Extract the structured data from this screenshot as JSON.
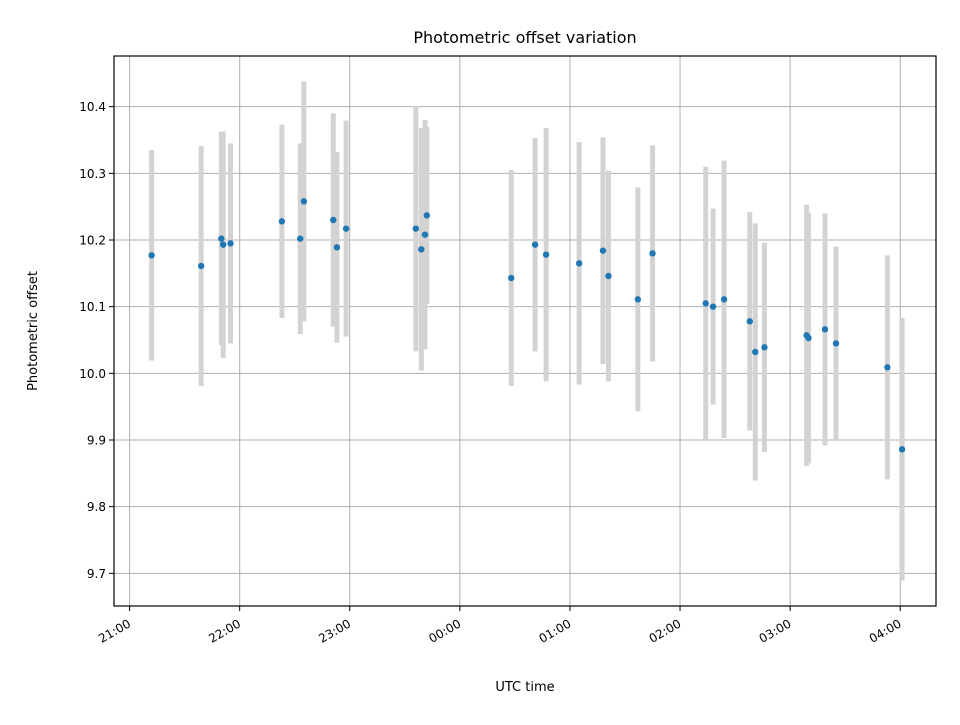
{
  "chart_data": {
    "type": "scatter",
    "title": "Photometric offset variation",
    "xlabel": "UTC time",
    "ylabel": "Photometric offset",
    "x_ticks": [
      {
        "label": "21:00",
        "value": 0
      },
      {
        "label": "22:00",
        "value": 60
      },
      {
        "label": "23:00",
        "value": 120
      },
      {
        "label": "00:00",
        "value": 180
      },
      {
        "label": "01:00",
        "value": 240
      },
      {
        "label": "02:00",
        "value": 300
      },
      {
        "label": "03:00",
        "value": 360
      },
      {
        "label": "04:00",
        "value": 420
      }
    ],
    "y_ticks": [
      {
        "label": "9.7",
        "value": 9.7
      },
      {
        "label": "9.8",
        "value": 9.8
      },
      {
        "label": "9.9",
        "value": 9.9
      },
      {
        "label": "10.0",
        "value": 10.0
      },
      {
        "label": "10.1",
        "value": 10.1
      },
      {
        "label": "10.2",
        "value": 10.2
      },
      {
        "label": "10.3",
        "value": 10.3
      },
      {
        "label": "10.4",
        "value": 10.4
      }
    ],
    "xlim": [
      -8.5,
      439.5
    ],
    "ylim": [
      9.651,
      10.476
    ],
    "grid": true,
    "point_color": "#1f77b4",
    "errorbar_color": "#d3d3d3",
    "points": [
      {
        "x": 12,
        "y": 10.177,
        "err": 0.158
      },
      {
        "x": 39,
        "y": 10.161,
        "err": 0.18
      },
      {
        "x": 50,
        "y": 10.202,
        "err": 0.16
      },
      {
        "x": 51,
        "y": 10.193,
        "err": 0.17
      },
      {
        "x": 55,
        "y": 10.195,
        "err": 0.15
      },
      {
        "x": 83,
        "y": 10.228,
        "err": 0.145
      },
      {
        "x": 93,
        "y": 10.202,
        "err": 0.143
      },
      {
        "x": 95,
        "y": 10.258,
        "err": 0.18
      },
      {
        "x": 111,
        "y": 10.23,
        "err": 0.16
      },
      {
        "x": 113,
        "y": 10.189,
        "err": 0.143
      },
      {
        "x": 118,
        "y": 10.217,
        "err": 0.162
      },
      {
        "x": 156,
        "y": 10.217,
        "err": 0.184
      },
      {
        "x": 159,
        "y": 10.186,
        "err": 0.182
      },
      {
        "x": 161,
        "y": 10.208,
        "err": 0.172
      },
      {
        "x": 162,
        "y": 10.237,
        "err": 0.133
      },
      {
        "x": 208,
        "y": 10.143,
        "err": 0.162
      },
      {
        "x": 221,
        "y": 10.193,
        "err": 0.16
      },
      {
        "x": 227,
        "y": 10.178,
        "err": 0.19
      },
      {
        "x": 245,
        "y": 10.165,
        "err": 0.182
      },
      {
        "x": 258,
        "y": 10.184,
        "err": 0.17
      },
      {
        "x": 261,
        "y": 10.146,
        "err": 0.158
      },
      {
        "x": 277,
        "y": 10.111,
        "err": 0.168
      },
      {
        "x": 285,
        "y": 10.18,
        "err": 0.162
      },
      {
        "x": 314,
        "y": 10.105,
        "err": 0.205
      },
      {
        "x": 318,
        "y": 10.1,
        "err": 0.147
      },
      {
        "x": 324,
        "y": 10.111,
        "err": 0.208
      },
      {
        "x": 338,
        "y": 10.078,
        "err": 0.164
      },
      {
        "x": 341,
        "y": 10.032,
        "err": 0.193
      },
      {
        "x": 346,
        "y": 10.039,
        "err": 0.157
      },
      {
        "x": 369,
        "y": 10.057,
        "err": 0.196
      },
      {
        "x": 370,
        "y": 10.053,
        "err": 0.188
      },
      {
        "x": 379,
        "y": 10.066,
        "err": 0.174
      },
      {
        "x": 385,
        "y": 10.045,
        "err": 0.145
      },
      {
        "x": 413,
        "y": 10.009,
        "err": 0.168
      },
      {
        "x": 421,
        "y": 9.886,
        "err": 0.197
      }
    ]
  }
}
